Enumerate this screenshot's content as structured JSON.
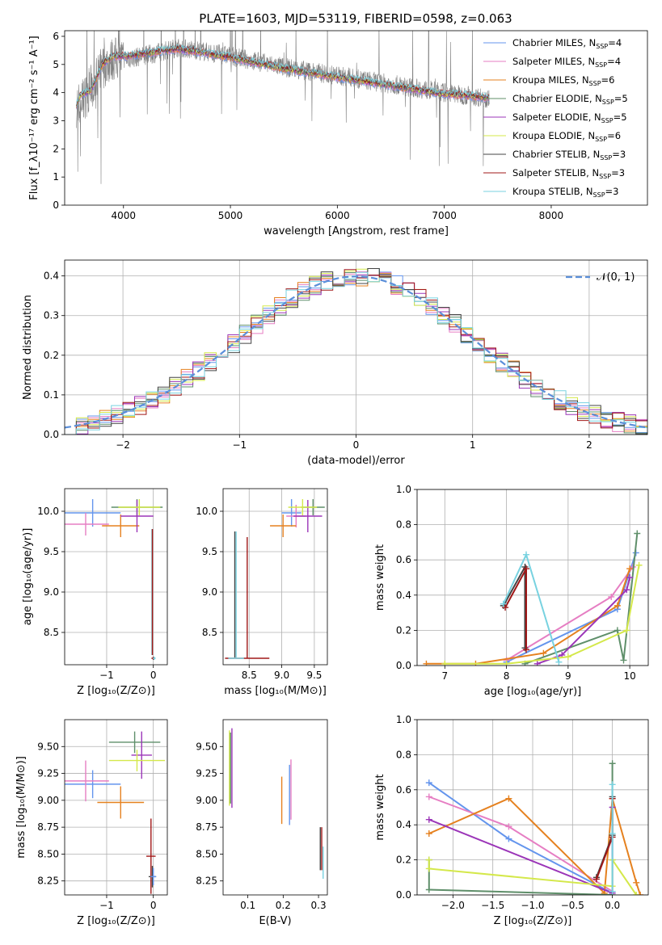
{
  "chart_data": [
    {
      "id": "spectrum",
      "type": "line",
      "title": "PLATE=1603, MJD=53119, FIBERID=0598, z=0.063",
      "xlabel": "wavelength [Angstrom, rest frame]",
      "ylabel": "Flux [f_λ10⁻¹⁷ erg cm⁻² s⁻¹ A⁻¹]",
      "xlim": [
        3450,
        8900
      ],
      "ylim": [
        0,
        6.2
      ],
      "xticks": [
        4000,
        5000,
        6000,
        7000,
        8000
      ],
      "yticks": [
        0,
        1,
        2,
        3,
        4,
        5,
        6
      ],
      "grid": false,
      "legend_placement": "upper-right",
      "data_color": "#808080",
      "data_trend": {
        "x": [
          3550,
          3650,
          3800,
          3900,
          4050,
          4300,
          4500,
          4700,
          5000,
          5500,
          6000,
          6500,
          7000,
          7200,
          7420
        ],
        "y": [
          3.5,
          3.9,
          4.9,
          5.2,
          5.2,
          5.4,
          5.6,
          5.5,
          5.3,
          4.9,
          4.6,
          4.3,
          4.0,
          3.9,
          3.8
        ]
      },
      "model_trend": {
        "x": [
          3550,
          3600,
          3700,
          3800,
          3900,
          4050,
          4300,
          4500,
          4700,
          5000,
          5500,
          6000,
          6500,
          7000,
          7200,
          7420
        ],
        "y": [
          3.5,
          3.9,
          4.1,
          5.0,
          5.3,
          5.3,
          5.45,
          5.55,
          5.45,
          5.25,
          4.85,
          4.55,
          4.25,
          3.95,
          3.9,
          3.8
        ]
      },
      "legend": [
        {
          "label": "Chabrier MILES, N",
          "sub": "SSP",
          "suffix": "=4",
          "color": "#6495ed"
        },
        {
          "label": "Salpeter MILES, N",
          "sub": "SSP",
          "suffix": "=4",
          "color": "#e67ec3"
        },
        {
          "label": "Kroupa MILES, N",
          "sub": "SSP",
          "suffix": "=6",
          "color": "#e5811f"
        },
        {
          "label": "Chabrier ELODIE, N",
          "sub": "SSP",
          "suffix": "=5",
          "color": "#5f8f6a"
        },
        {
          "label": "Salpeter ELODIE, N",
          "sub": "SSP",
          "suffix": "=5",
          "color": "#9b35b8"
        },
        {
          "label": "Kroupa ELODIE, N",
          "sub": "SSP",
          "suffix": "=6",
          "color": "#d4e84a"
        },
        {
          "label": "Chabrier STELIB, N",
          "sub": "SSP",
          "suffix": "=3",
          "color": "#444444"
        },
        {
          "label": "Salpeter STELIB, N",
          "sub": "SSP",
          "suffix": "=3",
          "color": "#a01818"
        },
        {
          "label": "Kroupa STELIB, N",
          "sub": "SSP",
          "suffix": "=3",
          "color": "#78d2e0"
        }
      ]
    },
    {
      "id": "residuals",
      "type": "line",
      "xlabel": "(data-model)/error",
      "ylabel": "Normed distribution",
      "xlim": [
        -2.5,
        2.5
      ],
      "ylim": [
        0,
        0.44
      ],
      "xticks": [
        -2,
        -1,
        0,
        1,
        2
      ],
      "yticks": [
        0.0,
        0.1,
        0.2,
        0.3,
        0.4
      ],
      "grid": true,
      "legend_placement": "upper-right",
      "legend_label": "𝒩(0, 1)",
      "gauss_color": "#5b8fd9",
      "bin_width": 0.1,
      "series_colors": [
        "#6495ed",
        "#e67ec3",
        "#e5811f",
        "#5f8f6a",
        "#9b35b8",
        "#d4e84a",
        "#444444",
        "#a01818",
        "#78d2e0"
      ]
    },
    {
      "id": "age-vs-Z",
      "type": "scatter",
      "xlabel": "Z [log₁₀(Z/Z⊙)]",
      "ylabel": "age  [log₁₀(age/yr)]",
      "xlim": [
        -1.9,
        0.3
      ],
      "ylim": [
        8.1,
        10.28
      ],
      "xticks": [
        -1,
        0
      ],
      "yticks": [
        8.5,
        9.0,
        9.5,
        10.0
      ],
      "grid": true,
      "points": [
        {
          "x": -1.3,
          "y": 9.98,
          "xerr": 0.6,
          "yerr": 0.17,
          "color": "#6495ed"
        },
        {
          "x": -1.45,
          "y": 9.84,
          "xerr": 0.5,
          "yerr": 0.14,
          "color": "#e67ec3"
        },
        {
          "x": -0.7,
          "y": 9.82,
          "xerr": 0.4,
          "yerr": 0.14,
          "color": "#e5811f"
        },
        {
          "x": -0.35,
          "y": 10.05,
          "xerr": 0.55,
          "yerr": 0.1,
          "color": "#5f8f6a"
        },
        {
          "x": -0.35,
          "y": 9.94,
          "xerr": 0.35,
          "yerr": 0.2,
          "color": "#9b35b8"
        },
        {
          "x": -0.3,
          "y": 10.05,
          "xerr": 0.45,
          "yerr": 0.1,
          "color": "#d4e84a"
        },
        {
          "x": 0.0,
          "y": 8.18,
          "xerr": 0.03,
          "yerr": 0.02,
          "color": "#444444"
        },
        {
          "x": 0.0,
          "y": 8.18,
          "xerr": 0.04,
          "yerr": 0.02,
          "color": "#a01818"
        },
        {
          "x": 0.02,
          "y": 8.18,
          "xerr": 0.03,
          "yerr": 0.02,
          "color": "#78d2e0"
        },
        {
          "x": -0.03,
          "y": 9.0,
          "xerr": 0.0,
          "yerr": 0.78,
          "color": "#78d2e0"
        },
        {
          "x": -0.02,
          "y": 9.0,
          "xerr": 0.0,
          "yerr": 0.78,
          "color": "#a01818"
        }
      ]
    },
    {
      "id": "age-vs-mass",
      "type": "scatter",
      "xlabel": "mass [log₁₀(M/M⊙)]",
      "ylabel": "",
      "xlim": [
        8.1,
        9.7
      ],
      "ylim": [
        8.1,
        10.28
      ],
      "xticks": [
        8.5,
        9.0,
        9.5
      ],
      "yticks": [
        8.5,
        9.0,
        9.5,
        10.0
      ],
      "grid": true,
      "points": [
        {
          "x": 9.15,
          "y": 9.98,
          "xerr": 0.15,
          "yerr": 0.17,
          "color": "#6495ed"
        },
        {
          "x": 9.22,
          "y": 9.94,
          "xerr": 0.15,
          "yerr": 0.14,
          "color": "#e67ec3"
        },
        {
          "x": 9.02,
          "y": 9.82,
          "xerr": 0.2,
          "yerr": 0.14,
          "color": "#e5811f"
        },
        {
          "x": 9.48,
          "y": 10.05,
          "xerr": 0.18,
          "yerr": 0.1,
          "color": "#5f8f6a"
        },
        {
          "x": 9.4,
          "y": 9.94,
          "xerr": 0.22,
          "yerr": 0.2,
          "color": "#9b35b8"
        },
        {
          "x": 9.32,
          "y": 10.05,
          "xerr": 0.22,
          "yerr": 0.1,
          "color": "#d4e84a"
        },
        {
          "x": 8.28,
          "y": 8.97,
          "xerr": 0.0,
          "yerr": 0.78,
          "color": "#444444"
        },
        {
          "x": 8.3,
          "y": 8.97,
          "xerr": 0.0,
          "yerr": 0.78,
          "color": "#78d2e0"
        },
        {
          "x": 8.47,
          "y": 8.93,
          "xerr": 0.0,
          "yerr": 0.75,
          "color": "#a01818"
        },
        {
          "x": 8.47,
          "y": 8.18,
          "xerr": 0.34,
          "yerr": 0.0,
          "color": "#a01818"
        },
        {
          "x": 8.3,
          "y": 8.18,
          "xerr": 0.12,
          "yerr": 0.0,
          "color": "#78d2e0"
        }
      ]
    },
    {
      "id": "weight-vs-age",
      "type": "line",
      "xlabel": "age  [log₁₀(age/yr)]",
      "ylabel": "mass weight",
      "xlim": [
        6.55,
        10.3
      ],
      "ylim": [
        0.0,
        1.0
      ],
      "xticks": [
        7,
        8,
        9,
        10
      ],
      "yticks": [
        0.0,
        0.2,
        0.4,
        0.6,
        0.8,
        1.0
      ],
      "grid": true,
      "series": [
        {
          "color": "#6495ed",
          "x": [
            8.0,
            9.8,
            10.1
          ],
          "y": [
            0.02,
            0.32,
            0.64
          ]
        },
        {
          "color": "#e67ec3",
          "x": [
            8.0,
            9.7,
            10.05
          ],
          "y": [
            0.03,
            0.39,
            0.56
          ]
        },
        {
          "color": "#e5811f",
          "x": [
            6.7,
            7.5,
            8.6,
            9.8,
            10.0
          ],
          "y": [
            0.01,
            0.01,
            0.07,
            0.34,
            0.55
          ]
        },
        {
          "color": "#5f8f6a",
          "x": [
            8.3,
            9.8,
            9.9,
            10.12
          ],
          "y": [
            0.01,
            0.2,
            0.03,
            0.75
          ]
        },
        {
          "color": "#9b35b8",
          "x": [
            8.5,
            8.9,
            9.95,
            10.0
          ],
          "y": [
            0.01,
            0.06,
            0.43,
            0.5
          ]
        },
        {
          "color": "#d4e84a",
          "x": [
            7.0,
            8.0,
            9.0,
            9.95,
            10.15
          ],
          "y": [
            0.01,
            0.01,
            0.05,
            0.2,
            0.57
          ]
        },
        {
          "color": "#444444",
          "x": [
            7.95,
            8.3,
            8.3
          ],
          "y": [
            0.34,
            0.56,
            0.1
          ]
        },
        {
          "color": "#a01818",
          "x": [
            7.98,
            8.32,
            8.32
          ],
          "y": [
            0.33,
            0.55,
            0.09
          ]
        },
        {
          "color": "#78d2e0",
          "x": [
            7.95,
            8.32,
            8.85
          ],
          "y": [
            0.35,
            0.63,
            0.02
          ]
        }
      ]
    },
    {
      "id": "mass-vs-Z",
      "type": "scatter",
      "xlabel": "Z [log₁₀(Z/Z⊙)]",
      "ylabel": "mass [log₁₀(M/M⊙)]",
      "xlim": [
        -1.9,
        0.3
      ],
      "ylim": [
        8.12,
        9.75
      ],
      "xticks": [
        -1,
        0
      ],
      "yticks": [
        8.25,
        8.5,
        8.75,
        9.0,
        9.25,
        9.5
      ],
      "grid": true,
      "points": [
        {
          "x": -1.3,
          "y": 9.15,
          "xerr": 0.6,
          "yerr": 0.13,
          "color": "#6495ed"
        },
        {
          "x": -1.45,
          "y": 9.18,
          "xerr": 0.5,
          "yerr": 0.19,
          "color": "#e67ec3"
        },
        {
          "x": -0.7,
          "y": 8.98,
          "xerr": 0.5,
          "yerr": 0.15,
          "color": "#e5811f"
        },
        {
          "x": -0.4,
          "y": 9.54,
          "xerr": 0.55,
          "yerr": 0.1,
          "color": "#5f8f6a"
        },
        {
          "x": -0.25,
          "y": 9.42,
          "xerr": 0.22,
          "yerr": 0.22,
          "color": "#9b35b8"
        },
        {
          "x": -0.35,
          "y": 9.37,
          "xerr": 0.6,
          "yerr": 0.1,
          "color": "#d4e84a"
        },
        {
          "x": -0.05,
          "y": 8.48,
          "xerr": 0.1,
          "yerr": 0.35,
          "color": "#a01818"
        },
        {
          "x": -0.02,
          "y": 8.29,
          "xerr": 0.08,
          "yerr": 0.1,
          "color": "#444444"
        },
        {
          "x": 0.0,
          "y": 8.29,
          "xerr": 0.06,
          "yerr": 0.08,
          "color": "#6495ed"
        }
      ]
    },
    {
      "id": "mass-vs-ebv",
      "type": "scatter",
      "xlabel": "E(B-V)",
      "ylabel": "",
      "xlim": [
        0.03,
        0.325
      ],
      "ylim": [
        8.12,
        9.75
      ],
      "xticks": [
        0.1,
        0.2,
        0.3
      ],
      "yticks": [
        8.25,
        8.5,
        8.75,
        9.0,
        9.25,
        9.5
      ],
      "grid": false,
      "points": [
        {
          "x": 0.048,
          "y": 9.3,
          "xerr": 0.0,
          "yerr": 0.35,
          "color": "#d4e84a"
        },
        {
          "x": 0.051,
          "y": 9.3,
          "xerr": 0.0,
          "yerr": 0.33,
          "color": "#5f8f6a"
        },
        {
          "x": 0.055,
          "y": 9.3,
          "xerr": 0.0,
          "yerr": 0.37,
          "color": "#9b35b8"
        },
        {
          "x": 0.196,
          "y": 9.0,
          "xerr": 0.0,
          "yerr": 0.22,
          "color": "#e5811f"
        },
        {
          "x": 0.218,
          "y": 9.05,
          "xerr": 0.0,
          "yerr": 0.28,
          "color": "#6495ed"
        },
        {
          "x": 0.222,
          "y": 9.1,
          "xerr": 0.0,
          "yerr": 0.28,
          "color": "#e67ec3"
        },
        {
          "x": 0.305,
          "y": 8.55,
          "xerr": 0.0,
          "yerr": 0.2,
          "color": "#444444"
        },
        {
          "x": 0.309,
          "y": 8.55,
          "xerr": 0.0,
          "yerr": 0.2,
          "color": "#a01818"
        },
        {
          "x": 0.313,
          "y": 8.42,
          "xerr": 0.0,
          "yerr": 0.15,
          "color": "#78d2e0"
        }
      ]
    },
    {
      "id": "weight-vs-Z",
      "type": "line",
      "xlabel": "Z [log₁₀(Z/Z⊙)]",
      "ylabel": "mass weight",
      "xlim": [
        -2.45,
        0.45
      ],
      "ylim": [
        0.0,
        1.0
      ],
      "xticks": [
        -2.0,
        -1.5,
        -1.0,
        -0.5,
        0.0
      ],
      "yticks": [
        0.0,
        0.2,
        0.4,
        0.6,
        0.8,
        1.0
      ],
      "grid": true,
      "series": [
        {
          "color": "#6495ed",
          "x": [
            -2.3,
            -1.3,
            0.0
          ],
          "y": [
            0.64,
            0.32,
            0.01
          ]
        },
        {
          "color": "#e67ec3",
          "x": [
            -2.3,
            -1.3,
            0.0
          ],
          "y": [
            0.56,
            0.39,
            0.02
          ]
        },
        {
          "color": "#e5811f",
          "x": [
            -2.3,
            -1.3,
            -0.1,
            0.0,
            0.3,
            0.35
          ],
          "y": [
            0.35,
            0.55,
            0.01,
            0.55,
            0.07,
            0.0
          ]
        },
        {
          "color": "#5f8f6a",
          "x": [
            -2.3,
            -2.3,
            0.0,
            0.0,
            0.0
          ],
          "y": [
            0.2,
            0.03,
            0.0,
            0.75,
            0.2
          ]
        },
        {
          "color": "#9b35b8",
          "x": [
            -2.3,
            0.0,
            0.0
          ],
          "y": [
            0.43,
            0.01,
            0.5
          ]
        },
        {
          "color": "#d4e84a",
          "x": [
            -2.3,
            -2.3,
            0.0,
            0.0,
            0.3
          ],
          "y": [
            0.2,
            0.15,
            0.05,
            0.2,
            0.0
          ]
        },
        {
          "color": "#444444",
          "x": [
            -0.2,
            0.0,
            0.0
          ],
          "y": [
            0.1,
            0.34,
            0.56
          ]
        },
        {
          "color": "#a01818",
          "x": [
            -0.2,
            0.0,
            0.0
          ],
          "y": [
            0.09,
            0.33,
            0.55
          ]
        },
        {
          "color": "#78d2e0",
          "x": [
            0.0,
            0.0,
            0.0
          ],
          "y": [
            0.35,
            0.63,
            0.02
          ]
        }
      ]
    }
  ]
}
